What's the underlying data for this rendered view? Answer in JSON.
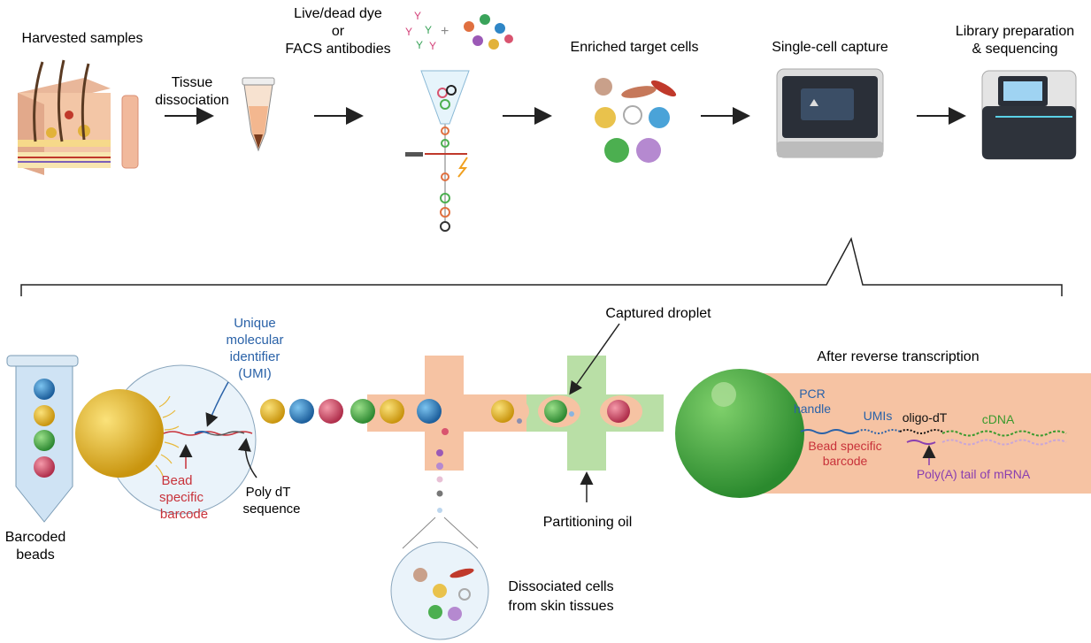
{
  "steps": {
    "harvested": "Harvested samples",
    "dissociation_1": "Tissue",
    "dissociation_2": "dissociation",
    "dye_1": "Live/dead dye",
    "dye_2": "or",
    "dye_3": "FACS antibodies",
    "enriched": "Enriched target cells",
    "capture": "Single-cell capture",
    "library_1": "Library preparation",
    "library_2": "& sequencing"
  },
  "bottom": {
    "barcoded_1": "Barcoded",
    "barcoded_2": "beads",
    "umi_1": "Unique",
    "umi_2": "molecular",
    "umi_3": "identifier",
    "umi_4": "(UMI)",
    "bead_barcode_1": "Bead",
    "bead_barcode_2": "specific",
    "bead_barcode_3": "barcode",
    "polydt_1": "Poly dT",
    "polydt_2": "sequence",
    "captured_droplet": "Captured droplet",
    "partitioning_oil": "Partitioning oil",
    "dissociated_1": "Dissociated cells",
    "dissociated_2": "from skin tissues",
    "after_rt": "After reverse transcription",
    "pcr_1": "PCR",
    "pcr_2": "handle",
    "umis": "UMIs",
    "oligo_dt": "oligo-dT",
    "cdna": "cDNA",
    "bead_specific_1": "Bead specific",
    "bead_specific_2": "barcode",
    "polya": "Poly(A) tail of mRNA"
  },
  "colors": {
    "salmon": "#f6c3a3",
    "channel_green": "#b9dfa6",
    "bead_yellow": "#e8b93a",
    "bead_blue": "#2f86c6",
    "bead_red": "#d9546f",
    "bead_green": "#4caf50",
    "umi_blue": "#2a62a8",
    "barcode_red": "#c8323a",
    "cdna_green": "#3a9a2e",
    "polya_purple": "#8a3fb0"
  }
}
